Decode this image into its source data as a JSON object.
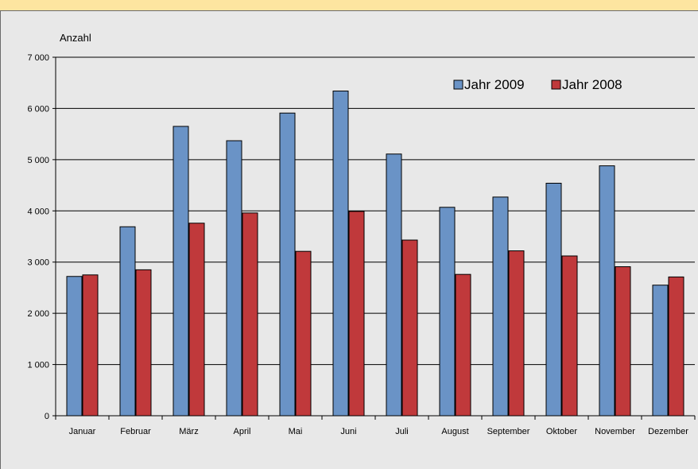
{
  "colors": {
    "series_2009": "#6a93c6",
    "series_2008": "#c0393b",
    "background": "#e8e8e8",
    "top_band": "#fde5a0"
  },
  "chart_data": {
    "type": "bar",
    "title": "",
    "ylabel": "Anzahl",
    "xlabel": "",
    "ylim": [
      0,
      7000
    ],
    "yticks": [
      0,
      1000,
      2000,
      3000,
      4000,
      5000,
      6000,
      7000
    ],
    "ytick_labels": [
      "0",
      "1 000",
      "2 000",
      "3 000",
      "4 000",
      "5 000",
      "6 000",
      "7 000"
    ],
    "grid": true,
    "legend_position": "top-right",
    "categories": [
      "Januar",
      "Februar",
      "März",
      "April",
      "Mai",
      "Juni",
      "Juli",
      "August",
      "September",
      "Oktober",
      "November",
      "Dezember"
    ],
    "series": [
      {
        "name": "Jahr 2009",
        "values": [
          2720,
          3690,
          5650,
          5370,
          5910,
          6340,
          5110,
          4070,
          4270,
          4540,
          4880,
          2550
        ]
      },
      {
        "name": "Jahr 2008",
        "values": [
          2750,
          2850,
          3760,
          3960,
          3210,
          3990,
          3430,
          2760,
          3220,
          3120,
          2910,
          2710
        ]
      }
    ]
  }
}
